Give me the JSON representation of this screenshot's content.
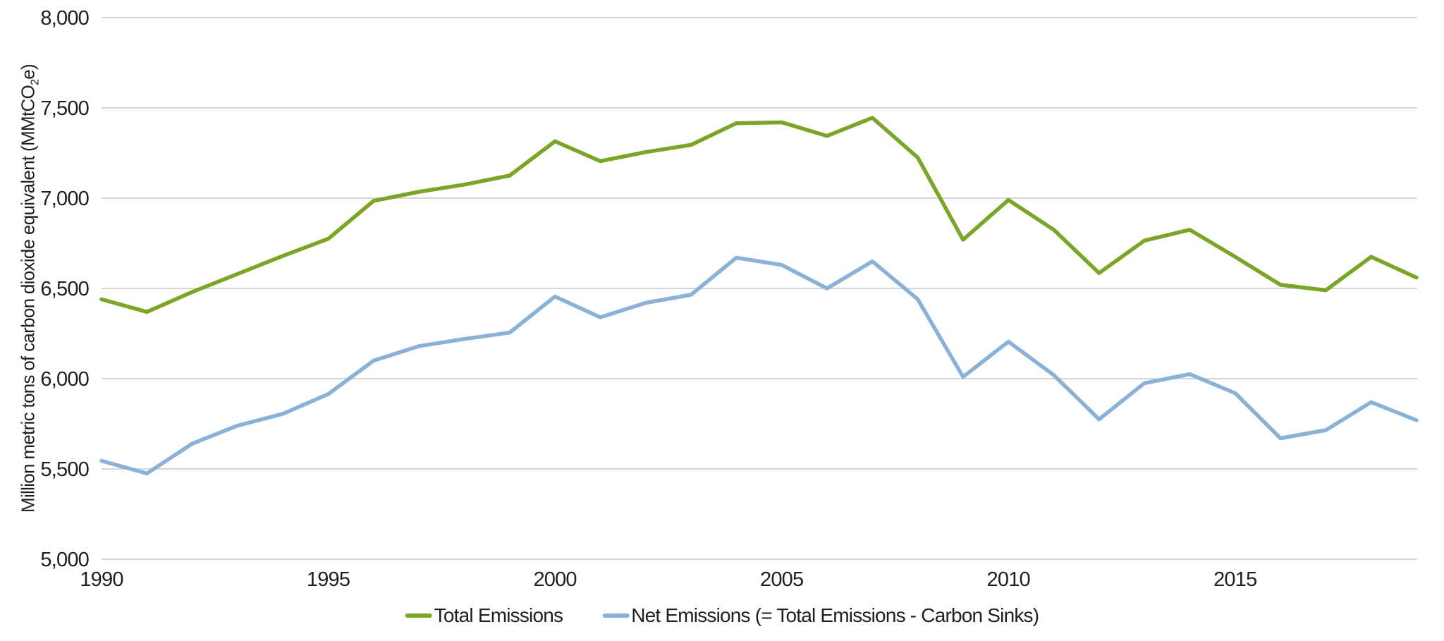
{
  "chart_data": {
    "type": "line",
    "title": "",
    "ylabel": "Million metric tons of carbon dioxide equivalent (MMtCO2e)",
    "ylabel_parts": {
      "pre": "Million metric tons of carbon dioxide equivalent (MMtCO",
      "sub": "2",
      "post": "e)"
    },
    "xlabel": "",
    "x": [
      1990,
      1991,
      1992,
      1993,
      1994,
      1995,
      1996,
      1997,
      1998,
      1999,
      2000,
      2001,
      2002,
      2003,
      2004,
      2005,
      2006,
      2007,
      2008,
      2009,
      2010,
      2011,
      2012,
      2013,
      2014,
      2015,
      2016,
      2017,
      2018,
      2019
    ],
    "x_ticks": [
      1990,
      1995,
      2000,
      2005,
      2010,
      2015
    ],
    "x_tick_labels": [
      "1990",
      "1995",
      "2000",
      "2005",
      "2010",
      "2015"
    ],
    "y_ticks": [
      5000,
      5500,
      6000,
      6500,
      7000,
      7500,
      8000
    ],
    "y_tick_labels": [
      "5,000",
      "5,500",
      "6,000",
      "6,500",
      "7,000",
      "7,500",
      "8,000"
    ],
    "ylim": [
      5000,
      8000
    ],
    "grid": "horizontal-only",
    "legend_position": "bottom-center",
    "background_color": "#ffffff",
    "grid_color": "#d6d6d6",
    "text_color": "#1f1f1f",
    "series": [
      {
        "name": "Total Emissions",
        "color": "#7aa526",
        "values": [
          6440,
          6370,
          6480,
          6580,
          6680,
          6775,
          6985,
          7035,
          7075,
          7125,
          7315,
          7205,
          7255,
          7295,
          7415,
          7420,
          7345,
          7445,
          7225,
          6770,
          6990,
          6825,
          6585,
          6765,
          6825,
          6675,
          6520,
          6490,
          6675,
          6560
        ]
      },
      {
        "name": "Net Emissions (= Total Emissions - Carbon Sinks)",
        "color": "#8ab1d6",
        "values": [
          5545,
          5475,
          5640,
          5740,
          5805,
          5915,
          6100,
          6180,
          6220,
          6255,
          6455,
          6340,
          6420,
          6465,
          6670,
          6630,
          6500,
          6650,
          6440,
          6010,
          6205,
          6020,
          5775,
          5975,
          6025,
          5920,
          5670,
          5715,
          5870,
          5770
        ]
      }
    ]
  }
}
